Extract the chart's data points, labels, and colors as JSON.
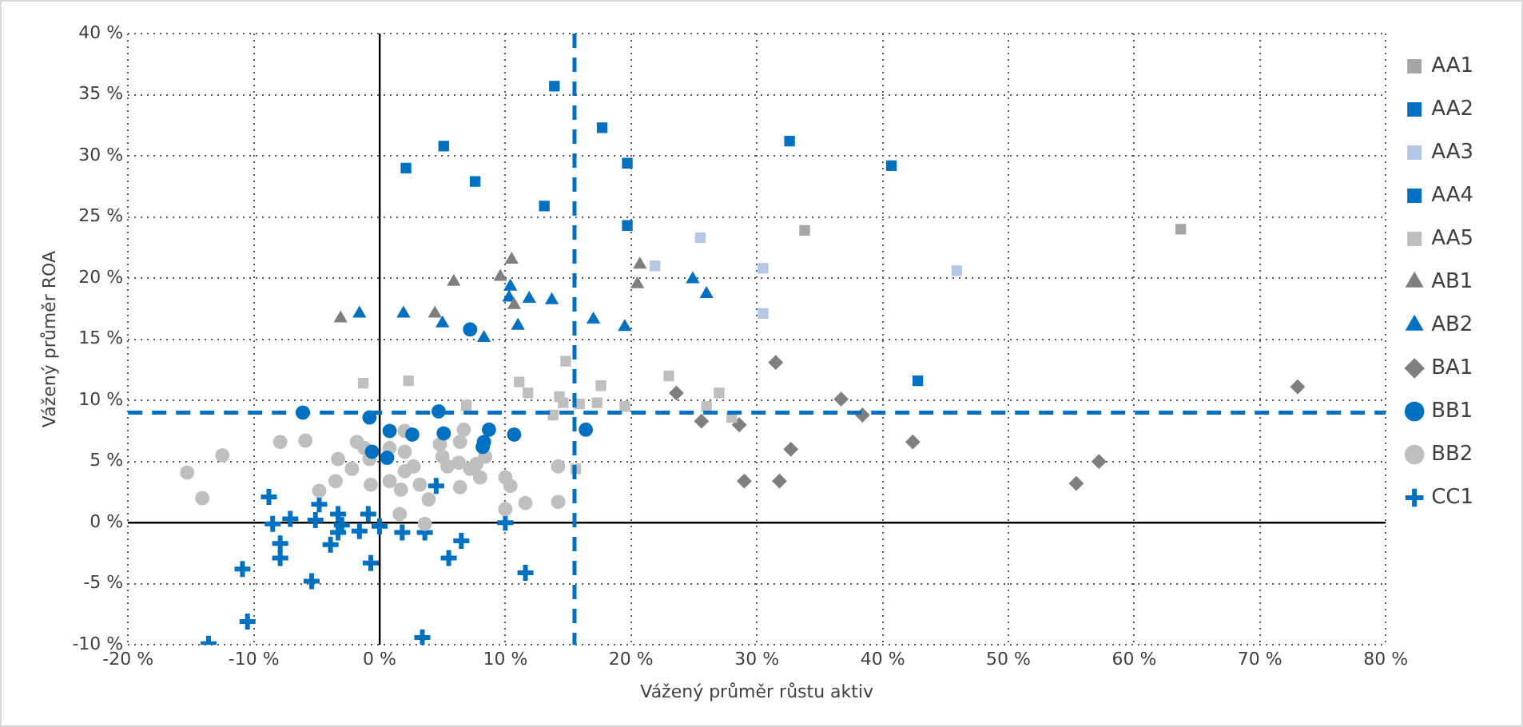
{
  "chart_data": {
    "type": "scatter",
    "xlabel": "Vážený průměr růstu aktiv",
    "ylabel": "Vážený průměr ROA",
    "xlim": [
      -20,
      80
    ],
    "ylim": [
      -10,
      40
    ],
    "xticks": [
      {
        "value": -20,
        "label": "-20 %"
      },
      {
        "value": -10,
        "label": "-10 %"
      },
      {
        "value": 0,
        "label": "0 %"
      },
      {
        "value": 10,
        "label": "10 %"
      },
      {
        "value": 20,
        "label": "20 %"
      },
      {
        "value": 30,
        "label": "30 %"
      },
      {
        "value": 40,
        "label": "40 %"
      },
      {
        "value": 50,
        "label": "50 %"
      },
      {
        "value": 60,
        "label": "60 %"
      },
      {
        "value": 70,
        "label": "70 %"
      },
      {
        "value": 80,
        "label": "80 %"
      }
    ],
    "yticks": [
      {
        "value": -10,
        "label": "-10 %"
      },
      {
        "value": -5,
        "label": "-5 %"
      },
      {
        "value": 0,
        "label": "0 %"
      },
      {
        "value": 5,
        "label": "5 %"
      },
      {
        "value": 10,
        "label": "10 %"
      },
      {
        "value": 15,
        "label": "15 %"
      },
      {
        "value": 20,
        "label": "20 %"
      },
      {
        "value": 25,
        "label": "25 %"
      },
      {
        "value": 30,
        "label": "30 %"
      },
      {
        "value": 35,
        "label": "35 %"
      },
      {
        "value": 40,
        "label": "40 %"
      }
    ],
    "grid": true,
    "legend": "right",
    "ref_lines": [
      {
        "axis": "y",
        "value": 9,
        "color": "#0070c0",
        "line_style": "dashed"
      },
      {
        "axis": "x",
        "value": 15.5,
        "color": "#0070c0",
        "line_style": "dashed"
      }
    ],
    "series": [
      {
        "name": "AA1",
        "color": "#a6a6a6",
        "marker": "square",
        "x": [
          33.8,
          63.7
        ],
        "values": [
          23.9,
          24.0
        ]
      },
      {
        "name": "AA2",
        "color": "#0070c0",
        "marker": "square",
        "x": [
          13.9,
          2.1,
          5.1,
          7.6,
          13.1,
          17.7,
          19.7,
          19.7,
          32.6,
          40.7
        ],
        "values": [
          35.7,
          29.0,
          30.8,
          27.9,
          25.9,
          32.3,
          29.4,
          24.3,
          31.2,
          29.2
        ]
      },
      {
        "name": "AA3",
        "color": "#b4c7e7",
        "marker": "square",
        "x": [
          25.5,
          21.9,
          30.5,
          30.5,
          45.9
        ],
        "values": [
          23.3,
          21.0,
          20.8,
          17.1,
          20.6
        ]
      },
      {
        "name": "AA4",
        "color": "#0070c0",
        "marker": "square",
        "x": [
          42.8
        ],
        "values": [
          11.6
        ]
      },
      {
        "name": "AA5",
        "color": "#bfbfbf",
        "marker": "square",
        "x": [
          -1.3,
          2.3,
          6.9,
          11.1,
          11.8,
          13.8,
          14.3,
          14.6,
          14.8,
          15.6,
          15.9,
          17.3,
          17.6,
          19.5,
          23.0,
          26.0,
          27.0,
          28.0
        ],
        "values": [
          11.4,
          11.6,
          9.6,
          11.5,
          10.6,
          8.8,
          10.3,
          9.8,
          13.2,
          4.4,
          9.7,
          9.8,
          11.2,
          9.5,
          12.0,
          9.5,
          10.6,
          8.6
        ]
      },
      {
        "name": "AB1",
        "color": "#7f7f7f",
        "marker": "triangle",
        "x": [
          -3.1,
          4.4,
          5.9,
          9.6,
          10.5,
          10.7,
          20.7,
          20.5
        ],
        "values": [
          16.7,
          17.1,
          19.7,
          20.1,
          21.5,
          17.8,
          21.1,
          19.5
        ]
      },
      {
        "name": "AB2",
        "color": "#0070c0",
        "marker": "triangle",
        "x": [
          -1.6,
          1.9,
          5.0,
          8.3,
          10.4,
          10.3,
          11.9,
          13.7,
          11.0,
          17.0,
          24.9,
          26.0,
          19.5
        ],
        "values": [
          17.1,
          17.1,
          16.3,
          15.1,
          19.3,
          18.4,
          18.3,
          18.2,
          16.1,
          16.6,
          19.9,
          18.7,
          16.0
        ]
      },
      {
        "name": "BA1",
        "color": "#7f7f7f",
        "marker": "diamond",
        "x": [
          31.5,
          23.6,
          36.7,
          38.4,
          25.6,
          28.6,
          32.7,
          42.4,
          29.0,
          31.8,
          55.4,
          57.2,
          73.0
        ],
        "values": [
          13.1,
          10.6,
          10.1,
          8.8,
          8.3,
          8.0,
          6.0,
          6.6,
          3.4,
          3.4,
          3.2,
          5.0,
          11.1
        ]
      },
      {
        "name": "BB1",
        "color": "#0070c0",
        "marker": "circle",
        "x": [
          7.2,
          -6.1,
          -0.8,
          4.7,
          0.8,
          2.6,
          5.1,
          8.7,
          8.3,
          8.2,
          10.7,
          0.6,
          -0.6,
          16.4
        ],
        "values": [
          15.8,
          9.0,
          8.6,
          9.1,
          7.5,
          7.2,
          7.3,
          7.6,
          6.6,
          6.2,
          7.2,
          5.3,
          5.8,
          7.6
        ]
      },
      {
        "name": "BB2",
        "color": "#bfbfbf",
        "marker": "circle",
        "x": [
          -12.5,
          -15.3,
          -14.1,
          -7.9,
          -5.9,
          -4.8,
          -3.5,
          -3.3,
          -1.8,
          -2.2,
          -0.8,
          -0.7,
          -1.2,
          0.8,
          1.6,
          1.7,
          2.0,
          2.0,
          2.7,
          3.2,
          3.9,
          4.8,
          5.0,
          5.4,
          6.4,
          6.7,
          6.3,
          6.4,
          7.2,
          7.7,
          8.0,
          8.4,
          3.6,
          10.0,
          10.4,
          10.0,
          11.6,
          14.2,
          14.2,
          0.8,
          2.0
        ],
        "values": [
          5.5,
          4.1,
          2.0,
          6.6,
          6.7,
          2.6,
          3.4,
          5.2,
          6.6,
          4.4,
          5.2,
          3.1,
          6.1,
          3.4,
          0.7,
          2.7,
          7.5,
          5.8,
          4.6,
          3.1,
          1.9,
          6.4,
          5.4,
          4.6,
          6.6,
          7.6,
          4.9,
          2.9,
          4.4,
          4.8,
          3.7,
          5.4,
          -0.1,
          3.7,
          3.0,
          1.1,
          1.6,
          1.7,
          4.6,
          6.1,
          4.2
        ]
      },
      {
        "name": "CC1",
        "color": "#0070c0",
        "marker": "cross",
        "x": [
          -8.8,
          -8.5,
          -7.1,
          -7.9,
          -7.9,
          -10.9,
          -10.5,
          -13.6,
          -5.4,
          -4.8,
          -5.1,
          -3.3,
          -3.0,
          -3.3,
          -3.9,
          -1.6,
          -0.9,
          0.0,
          -0.7,
          1.8,
          3.6,
          4.5,
          6.5,
          5.5,
          10.0,
          11.6,
          3.4
        ],
        "values": [
          2.1,
          -0.1,
          0.3,
          -1.7,
          -2.9,
          -3.8,
          -8.1,
          -9.9,
          -4.8,
          1.5,
          0.2,
          0.7,
          -0.2,
          -0.8,
          -1.8,
          -0.7,
          0.7,
          -0.3,
          -3.3,
          -0.8,
          -0.8,
          3.0,
          -1.5,
          -2.9,
          0.0,
          -4.1,
          -9.4
        ]
      }
    ]
  }
}
